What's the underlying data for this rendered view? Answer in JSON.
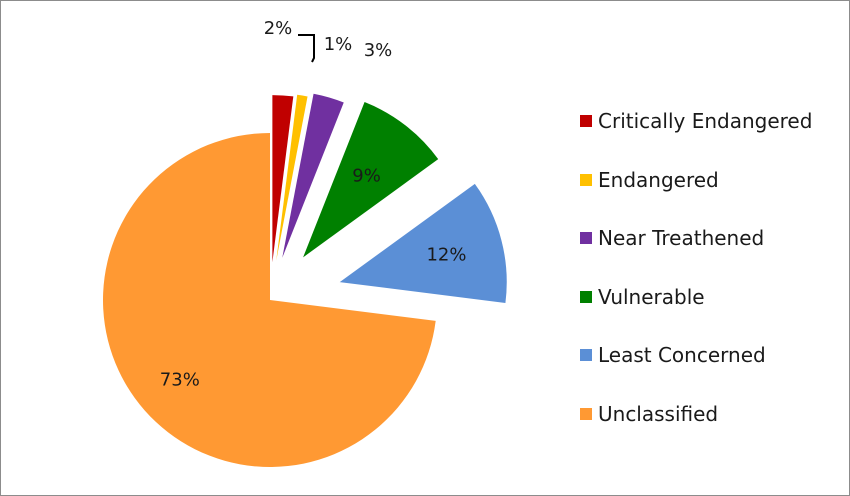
{
  "chart_data": {
    "type": "pie",
    "title": "",
    "slices": [
      {
        "name": "Critically Endangered",
        "value": 2,
        "label": "2%",
        "color": "#c00000"
      },
      {
        "name": "Endangered",
        "value": 1,
        "label": "1%",
        "color": "#ffc000"
      },
      {
        "name": "Near Treathened",
        "value": 3,
        "label": "3%",
        "color": "#7030a0"
      },
      {
        "name": "Vulnerable",
        "value": 9,
        "label": "9%",
        "color": "#008000"
      },
      {
        "name": "Least Concerned",
        "value": 12,
        "label": "12%",
        "color": "#5b8fd6"
      },
      {
        "name": "Unclassified",
        "value": 73,
        "label": "73%",
        "color": "#ff9933"
      }
    ],
    "legend_position": "right",
    "exploded": true,
    "start_angle_deg": 0,
    "direction": "clockwise"
  }
}
